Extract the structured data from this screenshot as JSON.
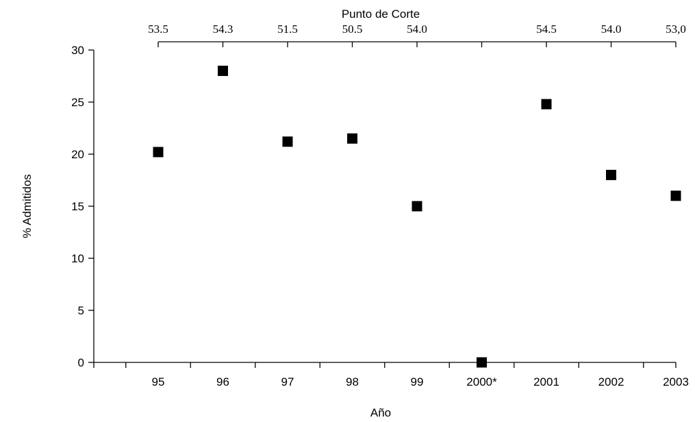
{
  "chart_data": {
    "type": "scatter",
    "categories": [
      "95",
      "96",
      "97",
      "98",
      "99",
      "2000*",
      "2001",
      "2002",
      "2003"
    ],
    "series": [
      {
        "values": [
          20.2,
          28.0,
          21.2,
          21.5,
          15.0,
          0,
          24.8,
          18.0,
          16.0
        ]
      }
    ],
    "top_axis": {
      "title": "Punto de Corte",
      "labels": [
        "53.5",
        "54.3",
        "51.5",
        "50.5",
        "54.0",
        "",
        "54.5",
        "54.0",
        "53,0"
      ]
    },
    "xlabel": "Año",
    "ylabel": "% Admitidos",
    "ylim": [
      0,
      30
    ],
    "yticks": [
      "0",
      "5",
      "10",
      "15",
      "20",
      "25",
      "30"
    ],
    "grid": false,
    "marker": "square",
    "marker_color": "#000000"
  }
}
